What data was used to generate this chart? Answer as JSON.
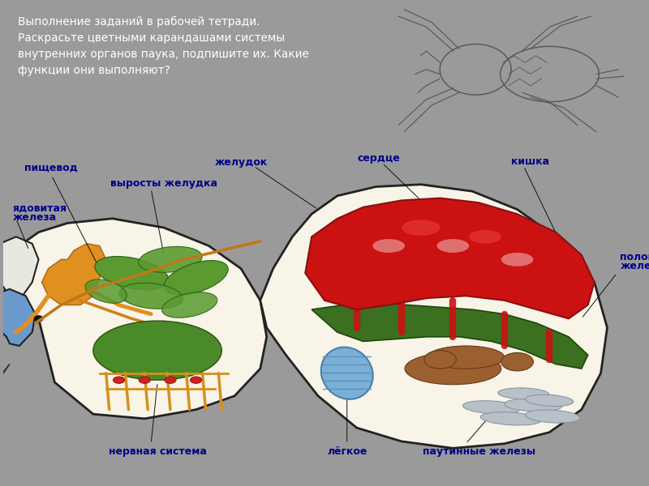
{
  "fig_bg": "#9a9a9a",
  "top_left_bg": "#8a9a8a",
  "top_right_bg": "#9a9a9a",
  "diagram_bg": "#f0ead8",
  "bottom_bg": "#9a9a9a",
  "title_text_line1": "Выполнение заданий в рабочей тетради.",
  "title_text_line2": "Раскрасьте цветными карандашами системы",
  "title_text_line3": "внутренних органов паука, подпишите их. Какие",
  "title_text_line4": "функции они выполняют?",
  "title_color": "#ffffff",
  "label_color": "#00008b",
  "label_fontsize": 9,
  "body_fill": "#f8f4e8",
  "body_edge": "#222222",
  "heart_color": "#cc1111",
  "stomach_color": "#5a9a30",
  "intestine_color": "#3a7020",
  "nervous_green": "#4a8a28",
  "nervous_yellow": "#d49020",
  "nervous_red": "#cc3333",
  "poison_blue": "#6a9acc",
  "poison_light": "#a8c8e8",
  "lung_blue": "#7ab0d8",
  "lung_stripe": "#5a90b8",
  "brown_gland": "#9a6030",
  "silk_gray": "#b8c0c8",
  "silk_edge": "#8090a0",
  "line_color": "#111111",
  "line_width": 0.7
}
